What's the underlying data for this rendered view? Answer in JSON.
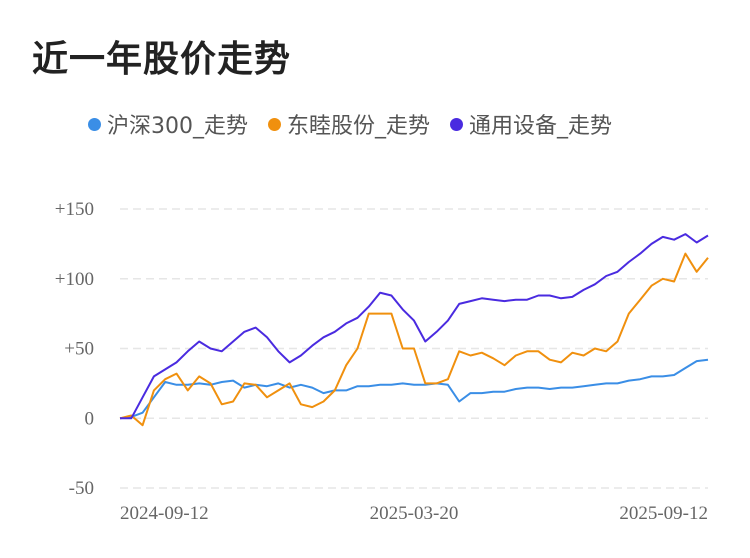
{
  "header": {
    "title": "近一年股价走势"
  },
  "colors": {
    "hs300": "#3a8ee6",
    "dongmu": "#f0900e",
    "tongyong": "#4a2be0",
    "grid": "#e6e6e6",
    "text": "#666666"
  },
  "chart_data": {
    "type": "line",
    "title": "近一年股价走势",
    "xlabel": "",
    "ylabel": "",
    "ylim": [
      -50,
      150
    ],
    "y_ticks": [
      150,
      100,
      50,
      0,
      -50
    ],
    "y_tick_labels": [
      "+150",
      "+100",
      "+50",
      "0",
      "-50"
    ],
    "x_tick_labels": [
      "2024-09-12",
      "2025-03-20",
      "2025-09-12"
    ],
    "x_tick_index": [
      0,
      26,
      52
    ],
    "legend_position": "top",
    "grid": true,
    "series": [
      {
        "name": "沪深300_走势",
        "color": "#3a8ee6",
        "values": [
          0,
          1,
          4,
          15,
          26,
          24,
          24,
          25,
          24,
          26,
          27,
          22,
          24,
          23,
          25,
          22,
          24,
          22,
          18,
          20,
          20,
          23,
          23,
          24,
          24,
          25,
          24,
          24,
          25,
          24,
          12,
          18,
          18,
          19,
          19,
          21,
          22,
          22,
          21,
          22,
          22,
          23,
          24,
          25,
          25,
          27,
          28,
          30,
          30,
          31,
          36,
          41,
          42
        ]
      },
      {
        "name": "东睦股份_走势",
        "color": "#f0900e",
        "values": [
          0,
          2,
          -5,
          20,
          28,
          32,
          20,
          30,
          25,
          10,
          12,
          25,
          24,
          15,
          20,
          25,
          10,
          8,
          12,
          20,
          38,
          50,
          75,
          75,
          75,
          50,
          50,
          25,
          25,
          28,
          48,
          45,
          47,
          43,
          38,
          45,
          48,
          48,
          42,
          40,
          47,
          45,
          50,
          48,
          55,
          75,
          85,
          95,
          100,
          98,
          118,
          105,
          115
        ]
      },
      {
        "name": "通用设备_走势",
        "color": "#4a2be0",
        "values": [
          0,
          0,
          15,
          30,
          35,
          40,
          48,
          55,
          50,
          48,
          55,
          62,
          65,
          58,
          48,
          40,
          45,
          52,
          58,
          62,
          68,
          72,
          80,
          90,
          88,
          78,
          70,
          55,
          62,
          70,
          82,
          84,
          86,
          85,
          84,
          85,
          85,
          88,
          88,
          86,
          87,
          92,
          96,
          102,
          105,
          112,
          118,
          125,
          130,
          128,
          132,
          126,
          131
        ]
      }
    ]
  }
}
